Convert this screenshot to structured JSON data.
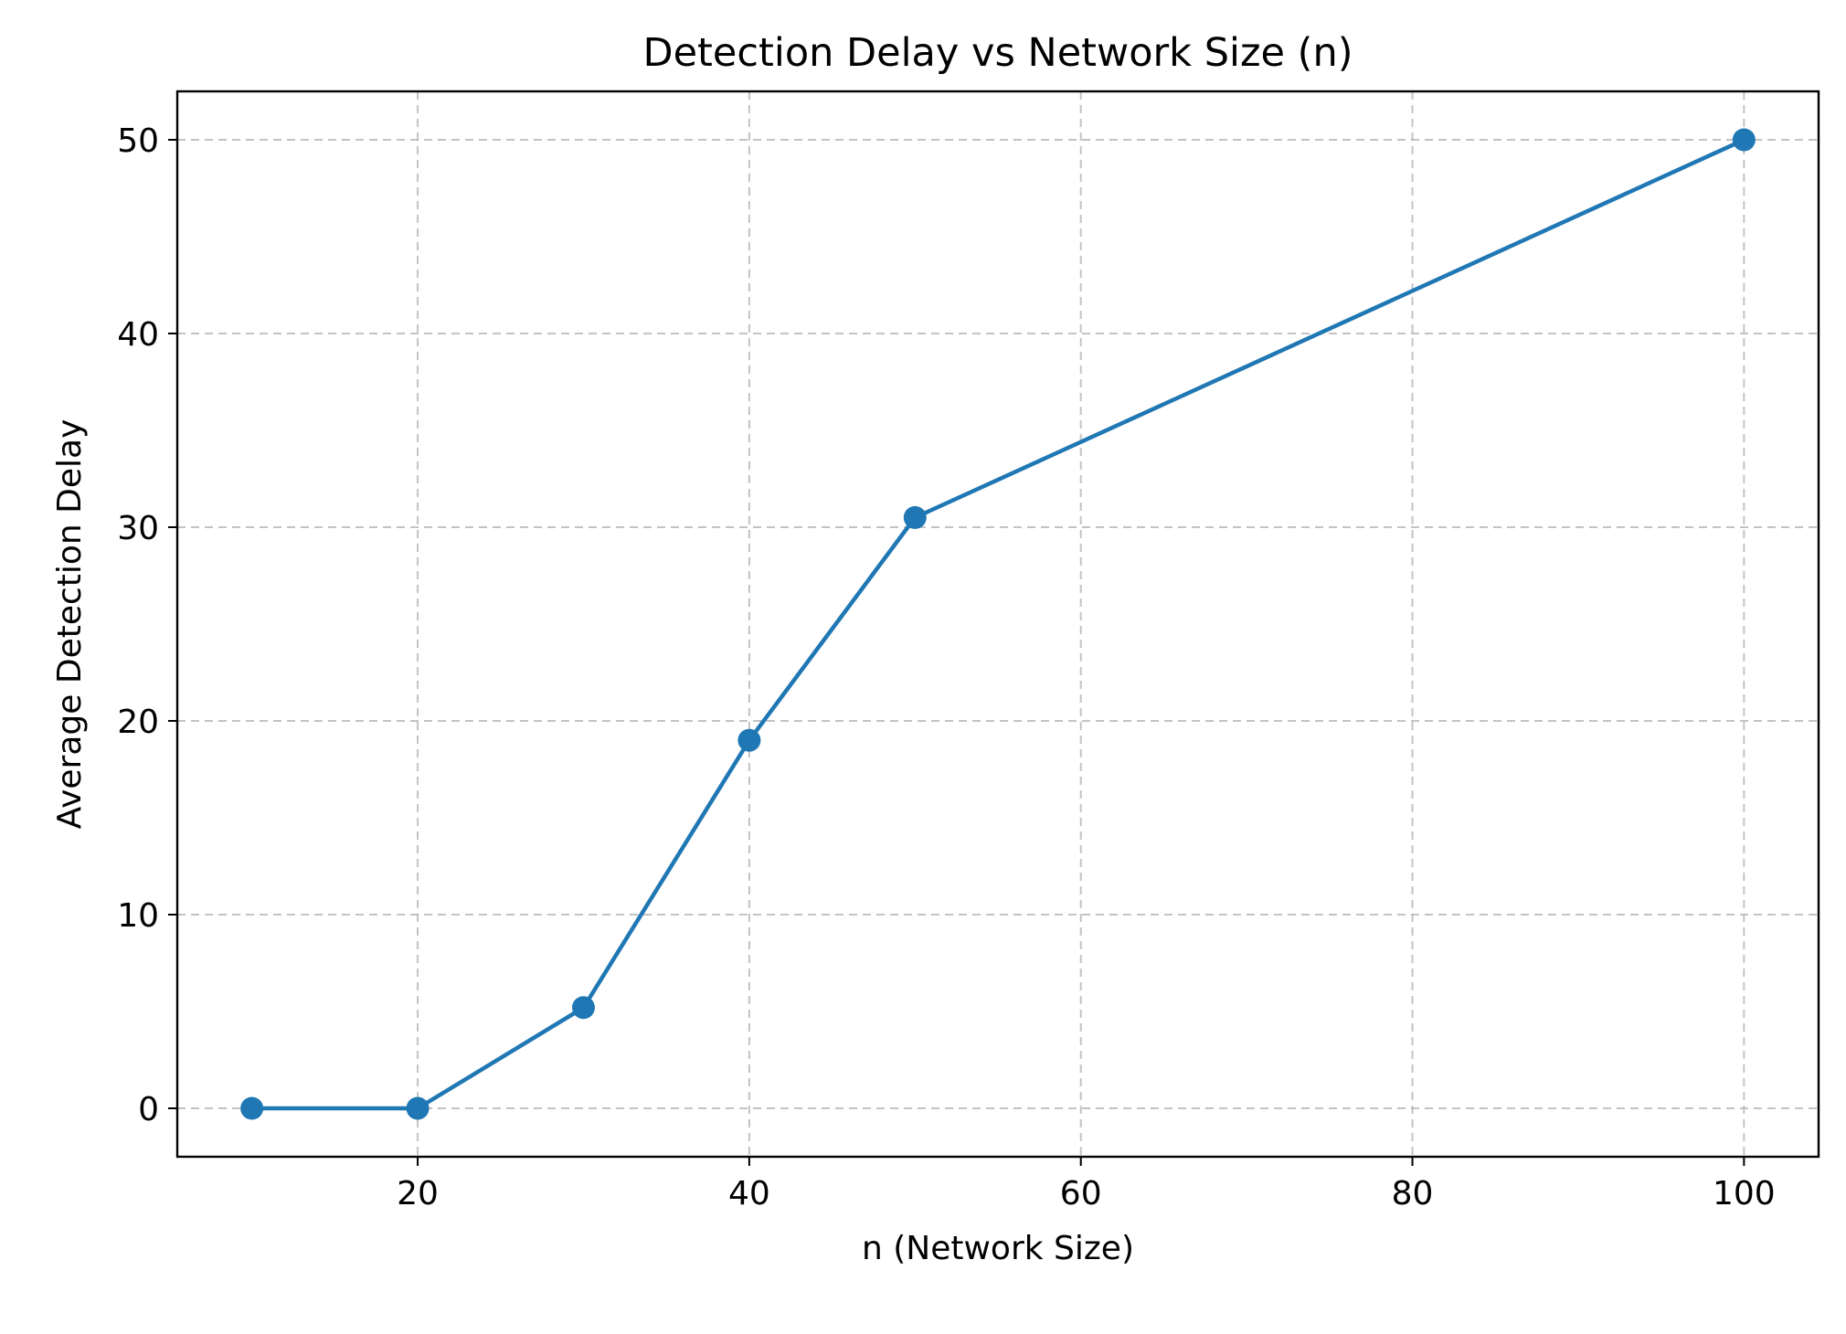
{
  "chart_data": {
    "type": "line",
    "title": "Detection Delay vs Network Size (n)",
    "xlabel": "n (Network Size)",
    "ylabel": "Average Detection Delay",
    "xlim": [
      5.5,
      104.5
    ],
    "ylim": [
      -2.5,
      52.5
    ],
    "xticks": [
      20,
      40,
      60,
      80,
      100
    ],
    "yticks": [
      0,
      10,
      20,
      30,
      40,
      50
    ],
    "grid": true,
    "color": "#1f77b4",
    "marker": "circle",
    "series": [
      {
        "x": [
          10,
          20,
          30,
          40,
          50,
          100
        ],
        "y": [
          0,
          0,
          5.2,
          19,
          30.5,
          50
        ]
      }
    ]
  }
}
